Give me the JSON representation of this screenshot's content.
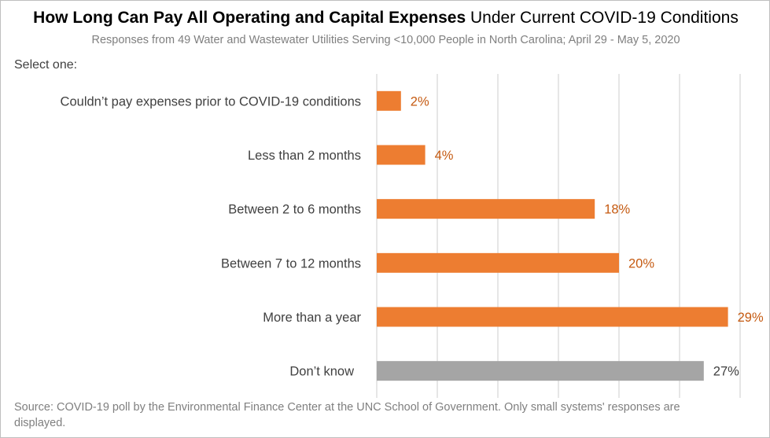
{
  "title_bold": "How Long Can Pay All Operating and Capital Expenses",
  "title_rest": " Under Current COVID-19 Conditions",
  "subtitle": "Responses from 49 Water and Wastewater Utilities Serving <10,000 People in North Carolina; April 29 - May 5, 2020",
  "prompt": "Select one:",
  "source": "Source: COVID-19 poll by the Environmental Finance Center at the UNC School of Government. Only small systems' responses are displayed.",
  "colors": {
    "primary": "#ED7D31",
    "neutral": "#A5A5A5",
    "label_orange": "#C55A11",
    "label_gray": "#404040",
    "grid": "#D9D9D9"
  },
  "chart_data": {
    "type": "bar",
    "orientation": "horizontal",
    "categories": [
      "Couldn’t pay expenses prior to COVID-19 conditions",
      "Less than 2 months",
      "Between 2 to 6 months",
      "Between 7 to 12 months",
      "More than a year",
      "Don’t know"
    ],
    "values": [
      2,
      4,
      18,
      20,
      29,
      27
    ],
    "value_labels": [
      "2%",
      "4%",
      "18%",
      "20%",
      "29%",
      "27%"
    ],
    "bar_colors": [
      "#ED7D31",
      "#ED7D31",
      "#ED7D31",
      "#ED7D31",
      "#ED7D31",
      "#A5A5A5"
    ],
    "xlim": [
      0,
      30
    ],
    "x_unit": "%",
    "grid": true
  }
}
